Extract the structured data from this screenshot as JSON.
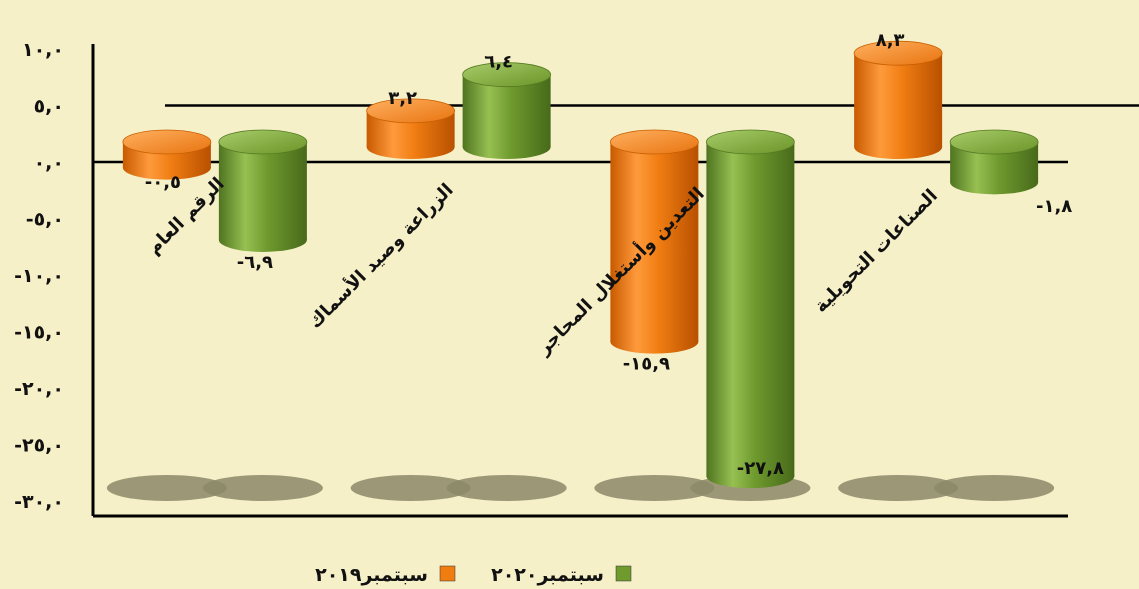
{
  "chart_data": {
    "type": "bar",
    "categories": [
      "الرقم العام",
      "الزراعة وصيد الأسماك",
      "التعدين وأستغلال المحاجر",
      "الصناعات التحويلية"
    ],
    "series": [
      {
        "name": "سبتمبر٢٠١٩",
        "color": "#ef7d10",
        "values": [
          -0.5,
          3.2,
          -15.9,
          8.3
        ],
        "labels": [
          "-٠,٥",
          "٣,٢",
          "-١٥,٩",
          "٨,٣"
        ]
      },
      {
        "name": "سبتمبر٢٠٢٠",
        "color": "#6f9a2e",
        "values": [
          -6.9,
          6.4,
          -27.8,
          -1.8
        ],
        "labels": [
          "-٦,٩",
          "٦,٤",
          "-٢٧,٨",
          "-١,٨"
        ]
      }
    ],
    "yticks": [
      10,
      5,
      0,
      -5,
      -10,
      -15,
      -20,
      -25,
      -30
    ],
    "ytick_labels": [
      "١٠,٠",
      "٥,٠",
      "٠,٠",
      "-٥,٠",
      "-١٠,٠",
      "-١٥,٠",
      "-٢٠,٠",
      "-٢٥,٠",
      "-٣٠,٠"
    ],
    "ylim": [
      -30,
      10
    ],
    "legend_position": "bottom",
    "background": "#f6f0c8"
  }
}
